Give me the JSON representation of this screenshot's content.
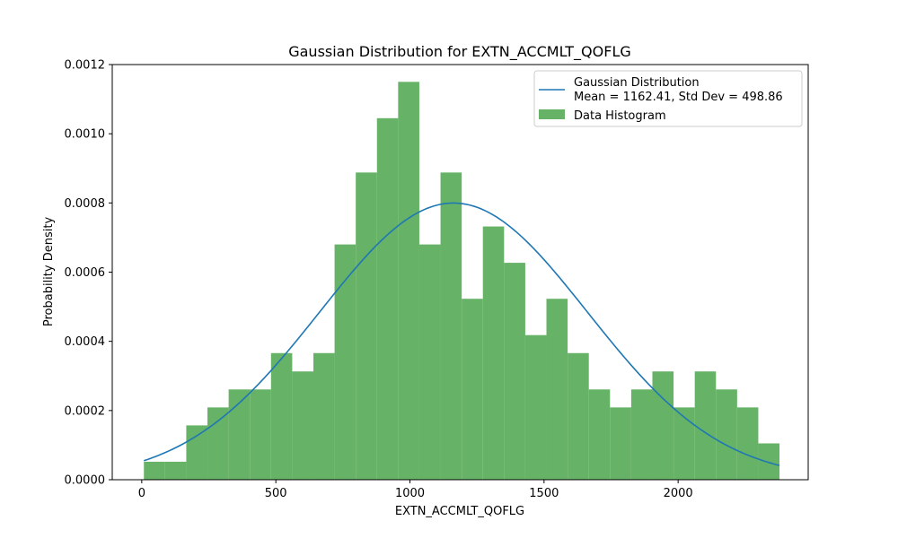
{
  "chart_data": {
    "type": "bar",
    "title": "Gaussian Distribution for EXTN_ACCMLT_QOFLG",
    "xlabel": "EXTN_ACCMLT_QOFLG",
    "ylabel": "Probability Density",
    "xlim": [
      -110,
      2485
    ],
    "ylim": [
      0,
      0.0012
    ],
    "x_ticks": [
      0,
      500,
      1000,
      1500,
      2000
    ],
    "y_ticks": [
      0.0,
      0.0002,
      0.0004,
      0.0006,
      0.0008,
      0.001,
      0.0012
    ],
    "x_tick_labels": [
      "0",
      "500",
      "1000",
      "1500",
      "2000"
    ],
    "y_tick_labels": [
      "0.0000",
      "0.0002",
      "0.0004",
      "0.0006",
      "0.0008",
      "0.0010",
      "0.0012"
    ],
    "grid": false,
    "legend_position": "top-right",
    "histogram": {
      "name": "Data Histogram",
      "color": "#66b266",
      "bin_edges": [
        8,
        87,
        166,
        245,
        324,
        403,
        482,
        561,
        640,
        719,
        798,
        877,
        956,
        1035,
        1114,
        1193,
        1272,
        1351,
        1430,
        1509,
        1588,
        1667,
        1746,
        1825,
        1904,
        1983,
        2062,
        2141,
        2220,
        2299,
        2378
      ],
      "densities": [
        5.2e-05,
        5.2e-05,
        0.000157,
        0.000209,
        0.000261,
        0.000261,
        0.000366,
        0.000313,
        0.000366,
        0.00068,
        0.000888,
        0.001045,
        0.00115,
        0.00068,
        0.000888,
        0.000523,
        0.000732,
        0.000627,
        0.000418,
        0.000523,
        0.000366,
        0.000261,
        0.000209,
        0.000261,
        0.000313,
        0.000209,
        0.000313,
        0.000261,
        0.000209,
        0.000105
      ]
    },
    "gaussian": {
      "name": "Gaussian Distribution",
      "label_line2": "Mean = 1162.41, Std Dev = 498.86",
      "mean": 1162.41,
      "std": 498.86,
      "x_range": [
        8,
        2378
      ],
      "color": "#1f77b4"
    }
  }
}
